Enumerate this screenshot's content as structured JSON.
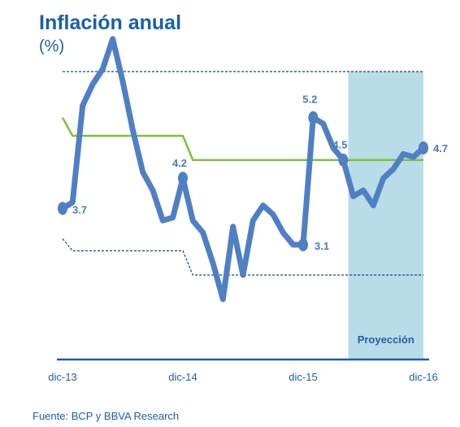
{
  "title": "Inflación anual",
  "subtitle": "(%)",
  "source": "Fuente: BCP y BBVA Research",
  "colors": {
    "inflation": "#4f7fc4",
    "target": "#7dc13a",
    "band": "#1f3f7a",
    "projection": "#b8dde8",
    "axis": "#1a5fa6"
  },
  "chart_data": {
    "type": "line",
    "xlabel": "",
    "ylabel": "",
    "x_ticks": [
      "dic-13",
      "dic-14",
      "dic-15",
      "dic-16"
    ],
    "x_range": [
      0,
      36
    ],
    "ylim": [
      1.5,
      5.8
    ],
    "projection": {
      "label": "Proyección",
      "x_start": 28.5,
      "x_end": 36
    },
    "series": [
      {
        "name": "",
        "role": "inflation",
        "x": [
          0,
          1,
          2,
          3,
          4,
          5,
          6,
          7,
          8,
          9,
          10,
          11,
          12,
          13,
          14,
          15,
          16,
          17,
          18,
          19,
          20,
          21,
          22,
          23,
          24,
          25,
          26,
          27,
          28,
          29,
          30,
          31,
          32,
          33,
          34,
          35,
          36
        ],
        "values": [
          3.7,
          3.8,
          5.4,
          5.75,
          6.0,
          6.5,
          5.8,
          5.0,
          4.3,
          4.0,
          3.5,
          3.55,
          4.2,
          3.5,
          3.3,
          2.8,
          2.2,
          3.4,
          2.6,
          3.5,
          3.75,
          3.6,
          3.3,
          3.1,
          3.1,
          5.2,
          5.1,
          4.7,
          4.5,
          3.9,
          4.0,
          3.75,
          4.2,
          4.35,
          4.6,
          4.55,
          4.7
        ]
      },
      {
        "name": "",
        "role": "target",
        "x": [
          0,
          1,
          12,
          13,
          36
        ],
        "values": [
          5.2,
          4.9,
          4.9,
          4.5,
          4.5
        ]
      },
      {
        "name": "",
        "role": "upper-band",
        "x": [
          0,
          1,
          12,
          13,
          36
        ],
        "values": [
          7.2,
          6.7,
          6.7,
          6.3,
          6.3
        ]
      },
      {
        "name": "",
        "role": "lower-band",
        "x": [
          0,
          1,
          12,
          13,
          36
        ],
        "values": [
          3.2,
          3.0,
          3.0,
          2.6,
          2.6
        ]
      }
    ],
    "data_labels": [
      {
        "x": 0,
        "value": 3.7,
        "text": "3.7"
      },
      {
        "x": 12,
        "value": 4.2,
        "text": "4.2"
      },
      {
        "x": 24,
        "value": 3.1,
        "text": "3.1"
      },
      {
        "x": 25,
        "value": 5.2,
        "text": "5.2"
      },
      {
        "x": 28,
        "value": 4.5,
        "text": "4.5"
      },
      {
        "x": 36,
        "value": 4.7,
        "text": "4.7"
      }
    ]
  }
}
